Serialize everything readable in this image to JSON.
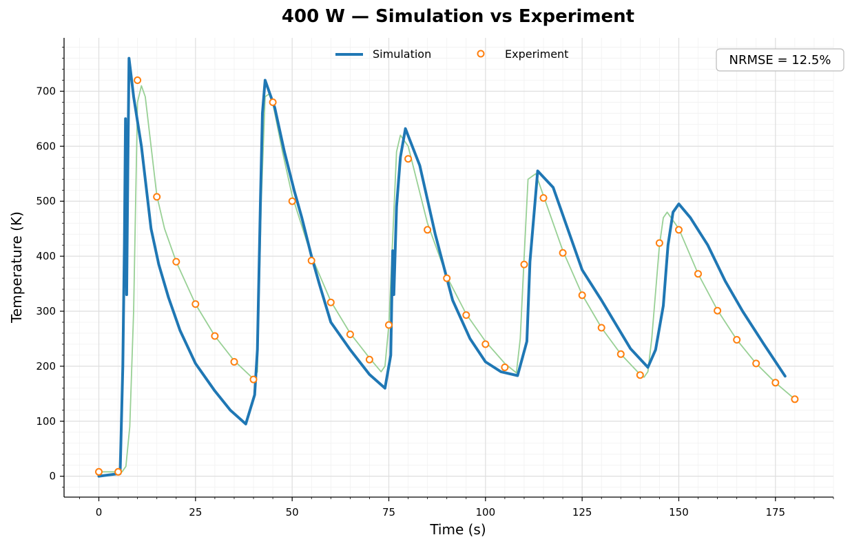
{
  "chart_data": {
    "type": "line",
    "title": "400 W — Simulation vs Experiment",
    "xlabel": "Time (s)",
    "ylabel": "Temperature (K)",
    "xlim": [
      -9,
      190
    ],
    "ylim": [
      -38,
      797
    ],
    "x_ticks": [
      0,
      25,
      50,
      75,
      100,
      125,
      150,
      175
    ],
    "y_ticks": [
      0,
      100,
      200,
      300,
      400,
      500,
      600,
      700
    ],
    "grid": true,
    "legend": {
      "placement": "top-center",
      "entries": [
        "Simulation",
        "Experiment"
      ]
    },
    "annotation": {
      "text": "NRMSE = 12.5%",
      "placement": "top-right"
    },
    "series": [
      {
        "name": "Simulation",
        "style": "line",
        "color": "#1f77b4",
        "points": [
          [
            0,
            0
          ],
          [
            5.5,
            5
          ],
          [
            6.2,
            200
          ],
          [
            6.6,
            420
          ],
          [
            6.9,
            650
          ],
          [
            7.2,
            330
          ],
          [
            7.5,
            560
          ],
          [
            7.8,
            760
          ],
          [
            9,
            690
          ],
          [
            11,
            600
          ],
          [
            13.5,
            450
          ],
          [
            15.5,
            385
          ],
          [
            18,
            325
          ],
          [
            21,
            265
          ],
          [
            25,
            205
          ],
          [
            30,
            155
          ],
          [
            34,
            120
          ],
          [
            38,
            95
          ],
          [
            40.3,
            148
          ],
          [
            41,
            230
          ],
          [
            41.8,
            500
          ],
          [
            42.3,
            660
          ],
          [
            43,
            720
          ],
          [
            45.5,
            670
          ],
          [
            48,
            590
          ],
          [
            50.5,
            520
          ],
          [
            52.5,
            470
          ],
          [
            55,
            400
          ],
          [
            57,
            350
          ],
          [
            60,
            280
          ],
          [
            65,
            230
          ],
          [
            70,
            185
          ],
          [
            74,
            160
          ],
          [
            75.5,
            220
          ],
          [
            76,
            410
          ],
          [
            76.3,
            330
          ],
          [
            77,
            490
          ],
          [
            78,
            580
          ],
          [
            79.3,
            632
          ],
          [
            80.5,
            610
          ],
          [
            83,
            565
          ],
          [
            87,
            440
          ],
          [
            91.5,
            320
          ],
          [
            96,
            250
          ],
          [
            100,
            208
          ],
          [
            104,
            190
          ],
          [
            108.3,
            183
          ],
          [
            110.7,
            245
          ],
          [
            111.5,
            390
          ],
          [
            113.5,
            555
          ],
          [
            117.5,
            525
          ],
          [
            121,
            455
          ],
          [
            125,
            375
          ],
          [
            130,
            320
          ],
          [
            137.5,
            232
          ],
          [
            142,
            198
          ],
          [
            144,
            230
          ],
          [
            146,
            310
          ],
          [
            147.2,
            420
          ],
          [
            148.5,
            480
          ],
          [
            150,
            495
          ],
          [
            153,
            470
          ],
          [
            157.5,
            420
          ],
          [
            162,
            355
          ],
          [
            166.5,
            300
          ],
          [
            172,
            240
          ],
          [
            177.5,
            182
          ]
        ]
      },
      {
        "name": "",
        "style": "line",
        "color": "#98d095",
        "points": [
          [
            0,
            8
          ],
          [
            6,
            8
          ],
          [
            7,
            18
          ],
          [
            8,
            90
          ],
          [
            9,
            300
          ],
          [
            10,
            680
          ],
          [
            11,
            710
          ],
          [
            12,
            690
          ],
          [
            13.5,
            600
          ],
          [
            15,
            510
          ],
          [
            17,
            450
          ],
          [
            20,
            390
          ],
          [
            25,
            313
          ],
          [
            30,
            255
          ],
          [
            35,
            210
          ],
          [
            40,
            177
          ],
          [
            41,
            190
          ],
          [
            42,
            500
          ],
          [
            43,
            690
          ],
          [
            44,
            695
          ],
          [
            45,
            678
          ],
          [
            47.5,
            590
          ],
          [
            50,
            510
          ],
          [
            55,
            400
          ],
          [
            60,
            318
          ],
          [
            65,
            260
          ],
          [
            70,
            215
          ],
          [
            73,
            190
          ],
          [
            74,
            200
          ],
          [
            75,
            275
          ],
          [
            77,
            590
          ],
          [
            78,
            620
          ],
          [
            80,
            600
          ],
          [
            85,
            460
          ],
          [
            90,
            363
          ],
          [
            95,
            295
          ],
          [
            100,
            245
          ],
          [
            105,
            205
          ],
          [
            108,
            188
          ],
          [
            109,
            250
          ],
          [
            110,
            400
          ],
          [
            111,
            540
          ],
          [
            113,
            550
          ],
          [
            115,
            510
          ],
          [
            120,
            410
          ],
          [
            125,
            330
          ],
          [
            130,
            270
          ],
          [
            135,
            222
          ],
          [
            140,
            185
          ],
          [
            141,
            180
          ],
          [
            142,
            190
          ],
          [
            143,
            250
          ],
          [
            145,
            420
          ],
          [
            146,
            470
          ],
          [
            147,
            480
          ],
          [
            150,
            450
          ],
          [
            155,
            368
          ],
          [
            160,
            302
          ],
          [
            165,
            248
          ],
          [
            170,
            205
          ],
          [
            175,
            170
          ],
          [
            180,
            140
          ]
        ]
      },
      {
        "name": "Experiment",
        "style": "markers",
        "color": "#ff7f0e",
        "points": [
          [
            0,
            8
          ],
          [
            5,
            8
          ],
          [
            10,
            720
          ],
          [
            15,
            508
          ],
          [
            20,
            390
          ],
          [
            25,
            313
          ],
          [
            30,
            255
          ],
          [
            35,
            208
          ],
          [
            40,
            176
          ],
          [
            45,
            680
          ],
          [
            50,
            500
          ],
          [
            55,
            392
          ],
          [
            60,
            316
          ],
          [
            65,
            258
          ],
          [
            70,
            212
          ],
          [
            75,
            275
          ],
          [
            80,
            577
          ],
          [
            85,
            448
          ],
          [
            90,
            360
          ],
          [
            95,
            293
          ],
          [
            100,
            240
          ],
          [
            105,
            198
          ],
          [
            110,
            385
          ],
          [
            115,
            506
          ],
          [
            120,
            406
          ],
          [
            125,
            329
          ],
          [
            130,
            270
          ],
          [
            135,
            222
          ],
          [
            140,
            184
          ],
          [
            145,
            424
          ],
          [
            150,
            448
          ],
          [
            155,
            368
          ],
          [
            160,
            301
          ],
          [
            165,
            248
          ],
          [
            170,
            205
          ],
          [
            175,
            170
          ],
          [
            180,
            140
          ]
        ]
      }
    ]
  }
}
